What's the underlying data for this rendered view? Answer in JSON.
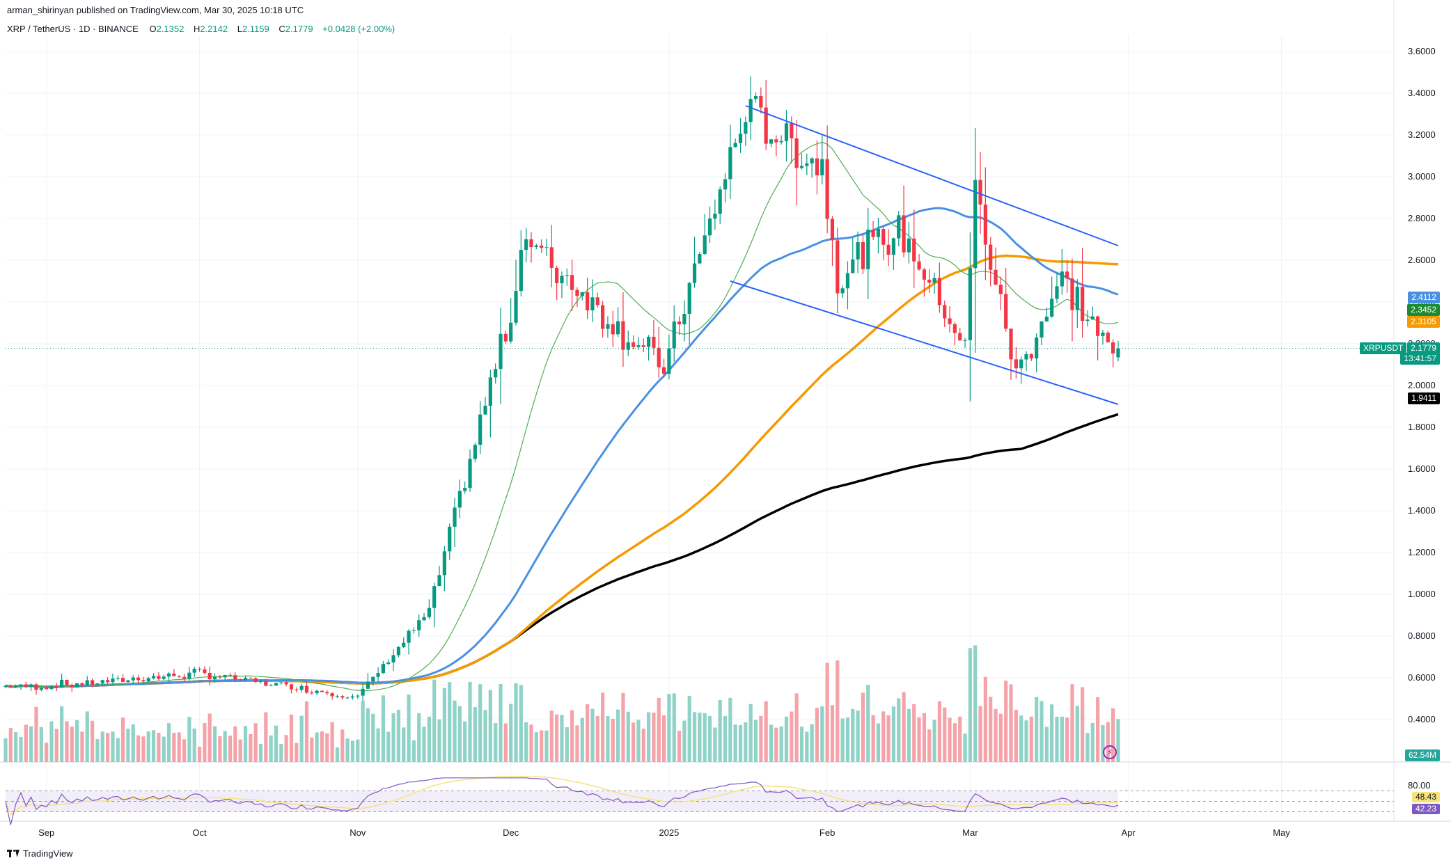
{
  "header": {
    "published_by": "arman_shirinyan published on TradingView.com, Mar 30, 2025 10:18 UTC"
  },
  "legend": {
    "symbol": "XRP / TetherUS · 1D · BINANCE",
    "open_label": "O",
    "open": "2.1352",
    "high_label": "H",
    "high": "2.2142",
    "low_label": "L",
    "low": "2.1159",
    "close_label": "C",
    "close": "2.1779",
    "change": "+0.0428 (+2.00%)"
  },
  "badges": {
    "ma_blue": "2.4112",
    "ma_green": "2.3452",
    "ma_orange": "2.3105",
    "ticker": "XRPUSDT",
    "price": "2.1779",
    "countdown": "13:41:57",
    "ma_black": "1.9411",
    "volume": "62.54M",
    "rsi_ma": "48.43",
    "rsi": "42.23"
  },
  "colors": {
    "up": "#089981",
    "down": "#f23645",
    "vol_up": "#8fd3c8",
    "vol_down": "#f5a3a9",
    "ma20": "#4caf50",
    "ma50": "#4a90e2",
    "ma100": "#f59a00",
    "ma200": "#000000",
    "trend": "#2962ff",
    "rsi": "#7e57c2",
    "rsi_ma": "#f7e27a"
  },
  "footer": {
    "brand": "TradingView",
    "logo_icon": "tradingview-logo-icon",
    "alert_icon": "lightning-icon"
  },
  "chart_data": {
    "type": "candlestick",
    "title": "XRP / TetherUS · 1D · BINANCE",
    "y_ticks": [
      "3.6000",
      "3.4000",
      "3.2000",
      "3.0000",
      "2.8000",
      "2.6000",
      "2.4000",
      "2.2000",
      "2.0000",
      "1.8000",
      "1.6000",
      "1.4000",
      "1.2000",
      "1.0000",
      "0.8000",
      "0.6000",
      "0.4000"
    ],
    "x_ticks": [
      "Sep",
      "Oct",
      "Nov",
      "Dec",
      "2025",
      "Feb",
      "Mar",
      "Apr",
      "May"
    ],
    "rsi_ticks": [
      "80.00"
    ],
    "ylim": [
      0.3,
      3.7
    ],
    "grid": true,
    "series_ohlc_keypoints": [
      {
        "date": "2024-09-01",
        "close": 0.56
      },
      {
        "date": "2024-10-01",
        "close": 0.62
      },
      {
        "date": "2024-11-01",
        "close": 0.51
      },
      {
        "date": "2024-11-15",
        "close": 0.92
      },
      {
        "date": "2024-12-02",
        "close": 2.45
      },
      {
        "date": "2024-12-03",
        "close": 2.72
      },
      {
        "date": "2024-12-31",
        "close": 2.08
      },
      {
        "date": "2025-01-16",
        "close": 3.31
      },
      {
        "date": "2025-01-31",
        "close": 3.05
      },
      {
        "date": "2025-02-03",
        "close": 2.52
      },
      {
        "date": "2025-02-15",
        "close": 2.75
      },
      {
        "date": "2025-02-28",
        "close": 2.18
      },
      {
        "date": "2025-03-02",
        "close": 2.94
      },
      {
        "date": "2025-03-10",
        "close": 2.05
      },
      {
        "date": "2025-03-19",
        "close": 2.52
      },
      {
        "date": "2025-03-29",
        "close": 2.14
      },
      {
        "date": "2025-03-30",
        "close": 2.1779
      }
    ],
    "moving_averages": [
      {
        "name": "MA20",
        "last": 2.3452
      },
      {
        "name": "MA50",
        "last": 2.4112
      },
      {
        "name": "MA100",
        "last": 2.3105
      },
      {
        "name": "MA200",
        "last": 1.9411
      }
    ],
    "volume_last": "62.54M",
    "rsi_last": 42.23,
    "rsi_ma_last": 48.43
  }
}
